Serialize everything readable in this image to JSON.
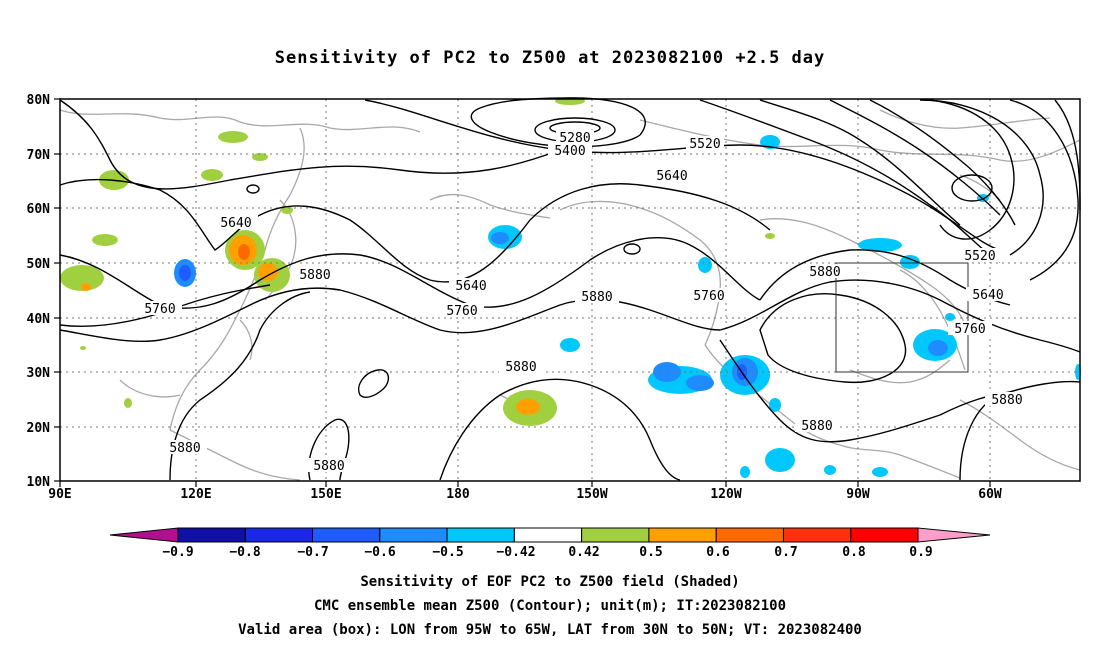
{
  "title": "Sensitivity of PC2 to Z500 at 2023082100 +2.5 day",
  "axes": {
    "lat_labels": [
      "80N",
      "70N",
      "60N",
      "50N",
      "40N",
      "30N",
      "20N",
      "10N"
    ],
    "lon_labels": [
      "90E",
      "120E",
      "150E",
      "180",
      "150W",
      "120W",
      "90W",
      "60W"
    ]
  },
  "contour_labels": {
    "l5280": "5280",
    "l5400": "5400",
    "l5520a": "5520",
    "l5520b": "5520",
    "l5640a": "5640",
    "l5640b": "5640",
    "l5640c": "5640",
    "l5640d": "5640",
    "l5760a": "5760",
    "l5760b": "5760",
    "l5760c": "5760",
    "l5760d": "5760",
    "l5880a": "5880",
    "l5880b": "5880",
    "l5880c": "5880",
    "l5880d": "5880",
    "l5880e": "5880",
    "l5880f": "5880",
    "l5880g": "5880",
    "l5880h": "5880"
  },
  "colorbar": {
    "labels": [
      "−0.9",
      "−0.8",
      "−0.7",
      "−0.6",
      "−0.5",
      "−0.42",
      "0.42",
      "0.5",
      "0.6",
      "0.7",
      "0.8",
      "0.9"
    ],
    "colors": [
      "#b0108f",
      "#1010a8",
      "#1a28e6",
      "#1e5cff",
      "#1e8cff",
      "#00c8ff",
      "#ffffff",
      "#a0d040",
      "#ffa000",
      "#ff6a00",
      "#ff3010",
      "#ff0000",
      "#ff9ec8"
    ]
  },
  "captions": {
    "line1": "Sensitivity of EOF PC2 to Z500 field (Shaded)",
    "line2": "CMC ensemble mean Z500 (Contour); unit(m); IT:2023082100",
    "line3": "Valid area (box): LON from 95W to 65W, LAT from 30N to 50N; VT: 2023082400"
  }
}
